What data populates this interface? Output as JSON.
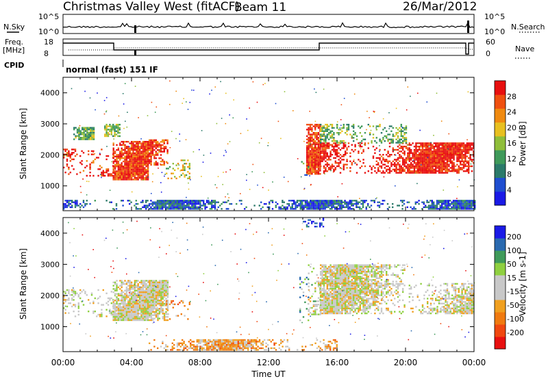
{
  "header": {
    "station": "Christmas Valley West (fitACF)",
    "beam": "Beam 11",
    "date": "26/Mar/2012"
  },
  "strip_labels": {
    "nsky": "N.Sky",
    "nsearch": "N.Search",
    "freq_line1": "Freq.",
    "freq_line2": "[MHz]",
    "nave": "Nave",
    "cpid": "CPID",
    "cpid_value": "normal (fast) 151 IF",
    "noise_tick_top": "10^5",
    "noise_tick_bottom": "10^0",
    "freq_tick_top": "18",
    "freq_tick_bottom": "8",
    "nave_tick_top": "60",
    "nave_tick_bottom": "0"
  },
  "colors": {
    "power_scale": [
      "#1a1ae6",
      "#1f4ed0",
      "#2b7a6a",
      "#3f9a5a",
      "#8fbe3a",
      "#e8c020",
      "#f08a10",
      "#f05010",
      "#e81010"
    ],
    "velocity_scale": [
      "#e81010",
      "#f04810",
      "#f07a10",
      "#f0a020",
      "#c8c8c8",
      "#c8c8c8",
      "#8fd040",
      "#3f9a5a",
      "#2a6ab0",
      "#1a1ae6"
    ]
  },
  "chart_data": [
    {
      "type": "heatmap",
      "name": "power",
      "ylabel": "Slant Range [km]",
      "colorbar_label": "Power [dB]",
      "colorbar_ticks": [
        "4",
        "8",
        "12",
        "16",
        "20",
        "24",
        "28"
      ],
      "xlim": [
        0,
        24
      ],
      "ylim": [
        200,
        4500
      ],
      "yticks": [
        "1000",
        "2000",
        "3000",
        "4000"
      ],
      "regions": [
        {
          "t0": 0.0,
          "t1": 2.9,
          "r0": 1350,
          "r1": 2200,
          "level": 0.92
        },
        {
          "t0": 2.9,
          "t1": 5.0,
          "r0": 1200,
          "r1": 2450,
          "level": 0.9
        },
        {
          "t0": 5.0,
          "t1": 6.1,
          "r0": 1700,
          "r1": 2500,
          "level": 0.85
        },
        {
          "t0": 6.0,
          "t1": 7.4,
          "r0": 1250,
          "r1": 1850,
          "level": 0.55
        },
        {
          "t0": 0.6,
          "t1": 1.8,
          "r0": 2500,
          "r1": 2900,
          "level": 0.4
        },
        {
          "t0": 2.4,
          "t1": 3.3,
          "r0": 2600,
          "r1": 3000,
          "level": 0.45
        },
        {
          "t0": 14.2,
          "t1": 15.0,
          "r0": 1400,
          "r1": 3000,
          "level": 0.9
        },
        {
          "t0": 15.0,
          "t1": 24.0,
          "r0": 1400,
          "r1": 2400,
          "level": 0.95
        },
        {
          "t0": 15.0,
          "t1": 20.0,
          "r0": 2400,
          "r1": 3000,
          "level": 0.45
        },
        {
          "t0": 13.9,
          "t1": 14.3,
          "r0": 1300,
          "r1": 1800,
          "level": 0.3
        },
        {
          "t0": 0.0,
          "t1": 24.0,
          "r0": 250,
          "r1": 550,
          "level": 0.2
        }
      ]
    },
    {
      "type": "heatmap",
      "name": "velocity",
      "ylabel": "Slant Range [km]",
      "colorbar_label": "Velocity [m s-1]",
      "colorbar_ticks": [
        "-200",
        "-100",
        "-50",
        "-15",
        "15",
        "50",
        "100",
        "200"
      ],
      "xlabel": "Time UT",
      "xticks": [
        "00:00",
        "04:00",
        "08:00",
        "12:00",
        "16:00",
        "20:00",
        "00:00"
      ],
      "xlim": [
        0,
        24
      ],
      "ylim": [
        200,
        4500
      ],
      "yticks": [
        "1000",
        "2000",
        "3000",
        "4000"
      ],
      "regions": [
        {
          "t0": 0.0,
          "t1": 2.9,
          "r0": 1350,
          "r1": 2200,
          "level": 0.5
        },
        {
          "t0": 2.9,
          "t1": 6.1,
          "r0": 1200,
          "r1": 2500,
          "level": 0.5
        },
        {
          "t0": 6.0,
          "t1": 7.4,
          "r0": 1250,
          "r1": 1850,
          "level": 0.3
        },
        {
          "t0": 13.8,
          "t1": 14.3,
          "r0": 1200,
          "r1": 2600,
          "level": 0.7
        },
        {
          "t0": 14.3,
          "t1": 15.0,
          "r0": 1400,
          "r1": 3000,
          "level": 0.55
        },
        {
          "t0": 15.0,
          "t1": 24.0,
          "r0": 1400,
          "r1": 2400,
          "level": 0.5
        },
        {
          "t0": 15.0,
          "t1": 20.0,
          "r0": 2400,
          "r1": 3000,
          "level": 0.5
        },
        {
          "t0": 14.0,
          "t1": 15.2,
          "r0": 4200,
          "r1": 4500,
          "level": 0.95
        },
        {
          "t0": 5.0,
          "t1": 16.0,
          "r0": 250,
          "r1": 600,
          "level": 0.35
        }
      ]
    }
  ]
}
